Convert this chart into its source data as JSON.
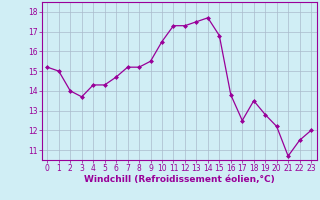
{
  "x": [
    0,
    1,
    2,
    3,
    4,
    5,
    6,
    7,
    8,
    9,
    10,
    11,
    12,
    13,
    14,
    15,
    16,
    17,
    18,
    19,
    20,
    21,
    22,
    23
  ],
  "y": [
    15.2,
    15.0,
    14.0,
    13.7,
    14.3,
    14.3,
    14.7,
    15.2,
    15.2,
    15.5,
    16.5,
    17.3,
    17.3,
    17.5,
    17.7,
    16.8,
    13.8,
    12.5,
    13.5,
    12.8,
    12.2,
    10.7,
    11.5,
    12.0
  ],
  "line_color": "#990099",
  "marker": "D",
  "marker_size": 2,
  "bg_color": "#d0eef5",
  "grid_color": "#aabbcc",
  "xlabel": "Windchill (Refroidissement éolien,°C)",
  "xlim": [
    -0.5,
    23.5
  ],
  "ylim": [
    10.5,
    18.5
  ],
  "yticks": [
    11,
    12,
    13,
    14,
    15,
    16,
    17,
    18
  ],
  "xticks": [
    0,
    1,
    2,
    3,
    4,
    5,
    6,
    7,
    8,
    9,
    10,
    11,
    12,
    13,
    14,
    15,
    16,
    17,
    18,
    19,
    20,
    21,
    22,
    23
  ],
  "tick_label_fontsize": 5.5,
  "xlabel_fontsize": 6.5,
  "label_color": "#990099",
  "line_width": 0.9
}
